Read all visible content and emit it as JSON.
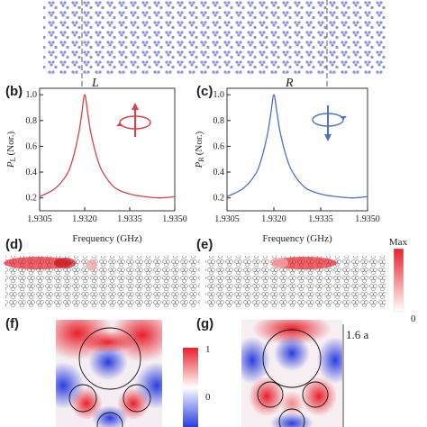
{
  "panels": {
    "b": {
      "label": "(b)",
      "mode": "L",
      "ylabel_sym": "P",
      "ylabel_sub": "L",
      "ylabel_suffix": "(Nor.)",
      "xlabel": "Frequency (GHz)",
      "color": "#d9404a"
    },
    "c": {
      "label": "(c)",
      "mode": "R",
      "ylabel_sym": "P",
      "ylabel_sub": "R",
      "ylabel_suffix": "(Nor.)",
      "xlabel": "Frequency (GHz)",
      "color": "#4a6fcc"
    },
    "d": {
      "label": "(d)"
    },
    "e": {
      "label": "(e)"
    },
    "f": {
      "label": "(f)"
    },
    "g": {
      "label": "(g)",
      "scale": "1.6 a"
    }
  },
  "colorbar_top": {
    "max": "Max",
    "min": "0"
  },
  "colorbar_bottom": {
    "max": "1",
    "mid": "0"
  },
  "chart_data": [
    {
      "type": "line",
      "panel": "b",
      "title": "L",
      "xlabel": "Frequency (GHz)",
      "ylabel": "P_L (Nor.)",
      "xlim": [
        1.9305,
        1.935
      ],
      "ylim": [
        0.1,
        1.05
      ],
      "xticks": [
        "1.9305",
        "1.9320",
        "1.9335",
        "1.9350"
      ],
      "yticks": [
        "0.2",
        "0.4",
        "0.6",
        "0.8",
        "1.0"
      ],
      "series": [
        {
          "color": "#d9404a",
          "x": [
            1.9305,
            1.931,
            1.9314,
            1.9316,
            1.9318,
            1.9319,
            1.932,
            1.9321,
            1.9322,
            1.9324,
            1.9326,
            1.933,
            1.9335,
            1.934,
            1.9345,
            1.935
          ],
          "y": [
            0.21,
            0.27,
            0.38,
            0.5,
            0.7,
            0.85,
            1.0,
            0.86,
            0.71,
            0.52,
            0.4,
            0.28,
            0.23,
            0.21,
            0.2,
            0.21
          ]
        }
      ]
    },
    {
      "type": "line",
      "panel": "c",
      "title": "R",
      "xlabel": "Frequency (GHz)",
      "ylabel": "P_R (Nor.)",
      "xlim": [
        1.9305,
        1.935
      ],
      "ylim": [
        0.1,
        1.05
      ],
      "xticks": [
        "1.9305",
        "1.9320",
        "1.9335",
        "1.9350"
      ],
      "yticks": [
        "0.2",
        "0.4",
        "0.6",
        "0.8",
        "1.0"
      ],
      "series": [
        {
          "color": "#4a6fcc",
          "x": [
            1.9305,
            1.931,
            1.9314,
            1.9316,
            1.9318,
            1.9319,
            1.932,
            1.9321,
            1.9322,
            1.9324,
            1.9326,
            1.933,
            1.9335,
            1.934,
            1.9345,
            1.935
          ],
          "y": [
            0.21,
            0.27,
            0.38,
            0.5,
            0.7,
            0.85,
            1.0,
            0.86,
            0.71,
            0.52,
            0.4,
            0.28,
            0.23,
            0.21,
            0.2,
            0.21
          ]
        }
      ]
    }
  ]
}
